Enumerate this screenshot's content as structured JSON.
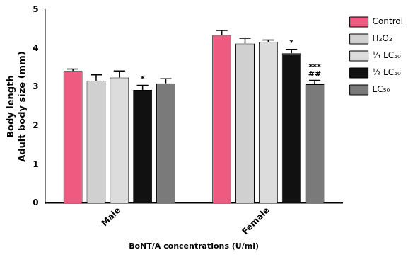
{
  "chart_data": {
    "type": "bar",
    "y_label": [
      "Body length",
      "Adult body size (mm)"
    ],
    "x_label": "BoNT/A concentrations (U/ml)",
    "categories": [
      "Male",
      "Female"
    ],
    "series": [
      {
        "name": "Control",
        "color": "#ef5a80",
        "values": [
          3.42,
          4.35
        ],
        "errors": [
          0.05,
          0.12
        ]
      },
      {
        "name": "H₂O₂",
        "color": "#d0d0d0",
        "values": [
          3.17,
          4.13
        ],
        "errors": [
          0.15,
          0.14
        ]
      },
      {
        "name": "¼ LC₅₀",
        "color": "#dcdcdc",
        "values": [
          3.25,
          4.17
        ],
        "errors": [
          0.17,
          0.05
        ]
      },
      {
        "name": "½ LC₅₀",
        "color": "#111111",
        "values": [
          2.93,
          3.88
        ],
        "errors": [
          0.12,
          0.1
        ]
      },
      {
        "name": "LC₅₀",
        "color": "#7a7a7a",
        "values": [
          3.1,
          3.08
        ],
        "errors": [
          0.12,
          0.1
        ]
      }
    ],
    "annotations": [
      {
        "category": "Male",
        "series": "½ LC₅₀",
        "text": "*"
      },
      {
        "category": "Female",
        "series": "½ LC₅₀",
        "text": "*"
      },
      {
        "category": "Female",
        "series": "LC₅₀",
        "text": "***"
      },
      {
        "category": "Female",
        "series": "LC₅₀",
        "text": "##"
      }
    ],
    "ylim": [
      0,
      5
    ],
    "yticks": [
      0,
      1,
      2,
      3,
      4,
      5
    ],
    "grid": false,
    "legend": "right"
  }
}
